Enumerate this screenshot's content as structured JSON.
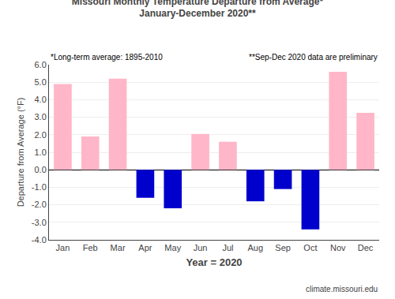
{
  "chart_data": {
    "type": "bar",
    "title": "Missouri Monthly Temperature Departure from Average*",
    "subtitle": "January-December 2020**",
    "annotations": [
      "*Long-term average: 1895-2010",
      "**Sep-Dec 2020 data are preliminary",
      "climate.missouri.edu"
    ],
    "xlabel": "Year = 2020",
    "ylabel": "Departure from Average (°F)",
    "categories": [
      "Jan",
      "Feb",
      "Mar",
      "Apr",
      "May",
      "Jun",
      "Jul",
      "Aug",
      "Sep",
      "Oct",
      "Nov",
      "Dec"
    ],
    "values": [
      4.9,
      1.9,
      5.2,
      -1.6,
      -2.2,
      2.05,
      1.6,
      -1.8,
      -1.1,
      -3.4,
      5.6,
      3.25
    ],
    "colors": [
      "#FFB6C8",
      "#FFB6C8",
      "#FFB6C8",
      "#0000CC",
      "#0000CC",
      "#FFB6C8",
      "#FFB6C8",
      "#0000CC",
      "#0000CC",
      "#0000CC",
      "#FFB6C8",
      "#FFB6C8"
    ],
    "ylim": [
      -4.0,
      6.0
    ],
    "yticks": [
      {
        "value": -4.0,
        "label": "-4.0"
      },
      {
        "value": -3.0,
        "label": "-3.0"
      },
      {
        "value": -2.0,
        "label": "-2.0"
      },
      {
        "value": -1.0,
        "label": "-1.0"
      },
      {
        "value": 0.0,
        "label": "0.0"
      },
      {
        "value": 1.0,
        "label": "1.0"
      },
      {
        "value": 2.0,
        "label": "2.0"
      },
      {
        "value": 3.0,
        "label": "3.0"
      },
      {
        "value": 4.0,
        "label": "4.0"
      },
      {
        "value": 5.0,
        "label": "5.0"
      },
      {
        "value": 6.0,
        "label": "6.0"
      }
    ],
    "grid": true
  }
}
